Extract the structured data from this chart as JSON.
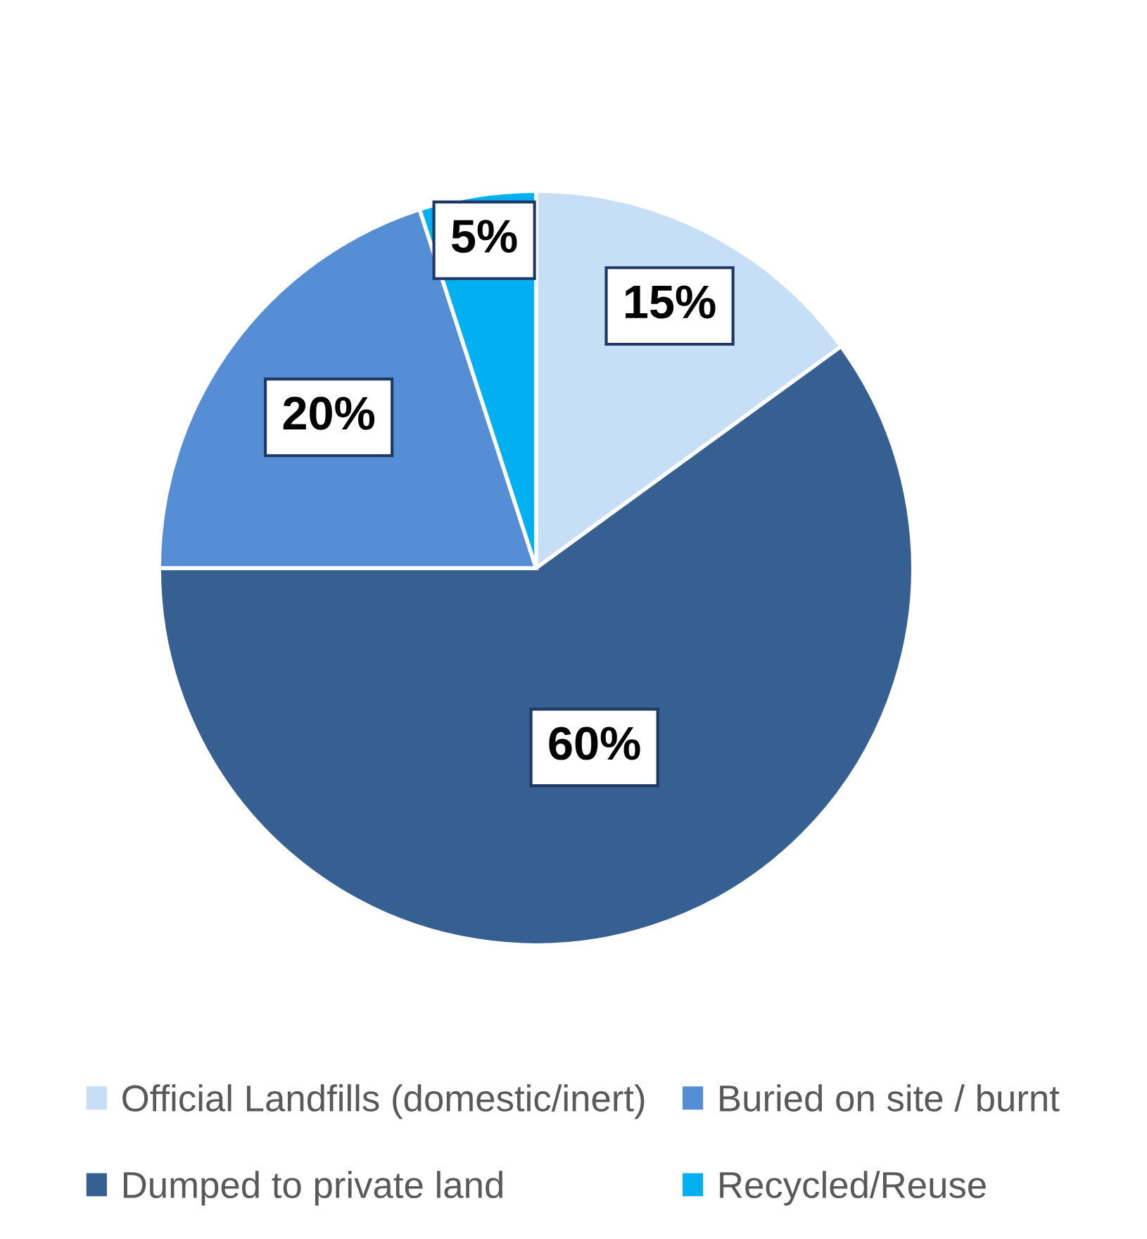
{
  "chart_data": {
    "type": "pie",
    "categories": [
      "Official Landfills (domestic/inert)",
      "Dumped to private land",
      "Buried on site / burnt",
      "Recycled/Reuse"
    ],
    "values": [
      15,
      60,
      20,
      5
    ],
    "colors": [
      "#c6dff7",
      "#376092",
      "#558ed5",
      "#00b0f0"
    ],
    "value_labels": [
      "15%",
      "60%",
      "20%",
      "5%"
    ],
    "legend": "bottom"
  }
}
